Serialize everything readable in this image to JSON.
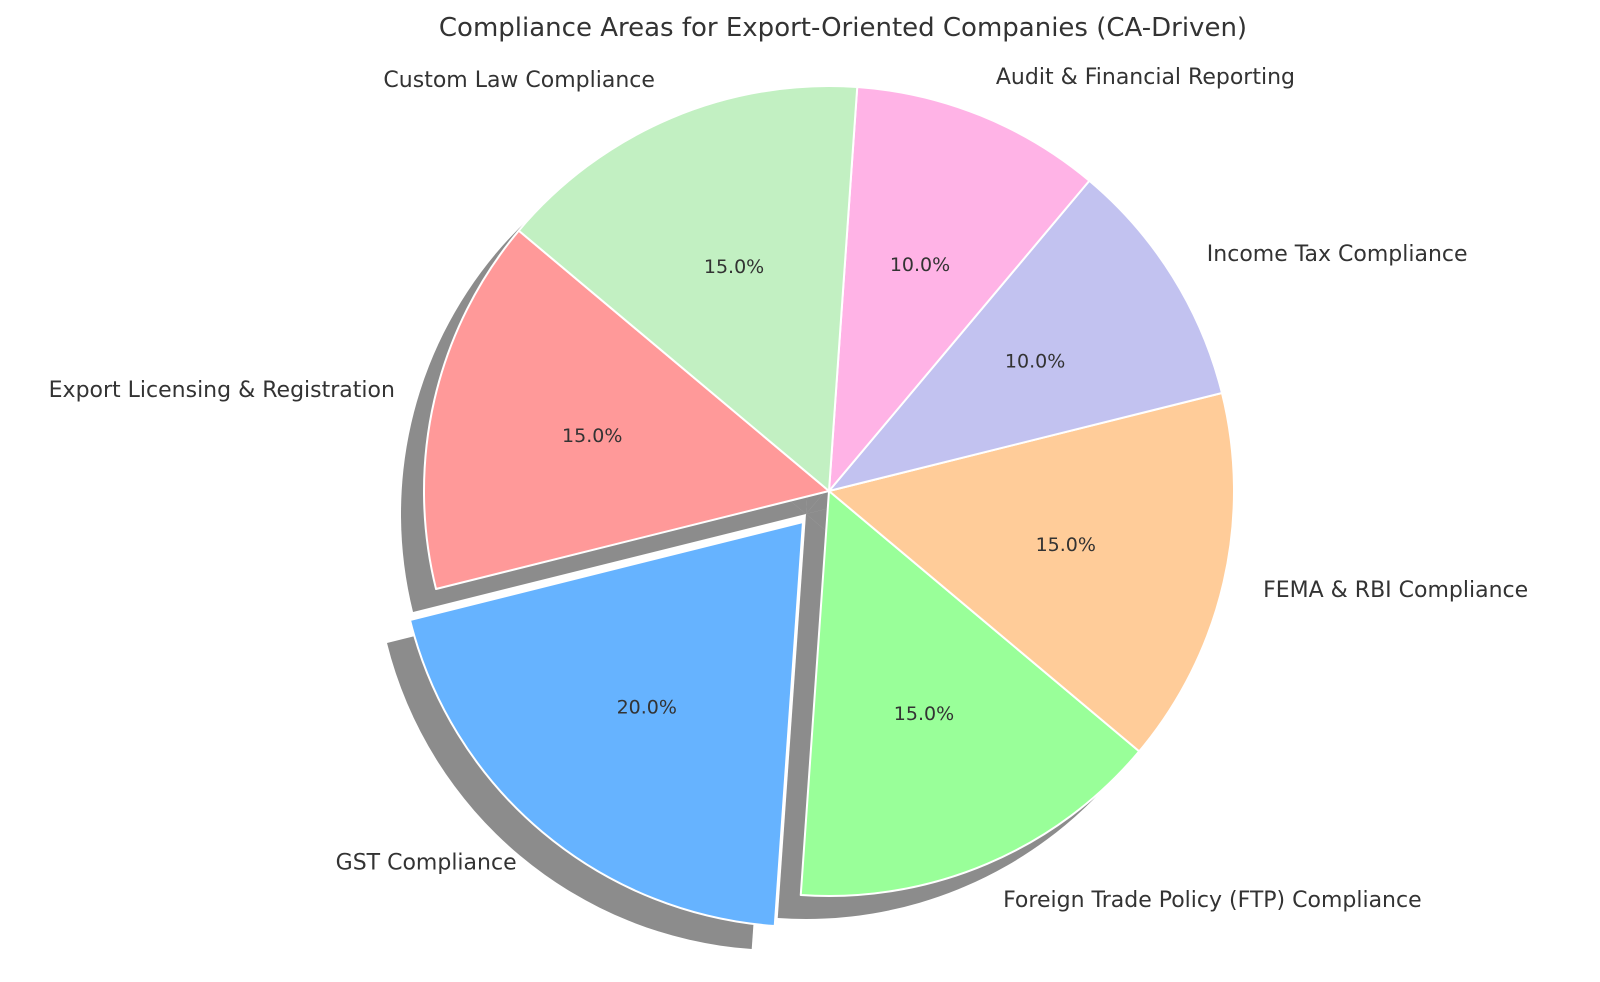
{
  "chart_data": {
    "type": "pie",
    "title": "Compliance Areas for Export-Oriented Companies (CA-Driven)",
    "start_angle_deg": 140,
    "direction": "counterclockwise",
    "shadow": true,
    "slices": [
      {
        "label": "Export Licensing & Registration",
        "value": 15,
        "pct_label": "15.0%",
        "color": "#ff9999",
        "explode": 0
      },
      {
        "label": "GST Compliance",
        "value": 20,
        "pct_label": "20.0%",
        "color": "#66b3ff",
        "explode": 0.1
      },
      {
        "label": "Foreign Trade Policy (FTP) Compliance",
        "value": 15,
        "pct_label": "15.0%",
        "color": "#99ff99",
        "explode": 0
      },
      {
        "label": "FEMA & RBI Compliance",
        "value": 15,
        "pct_label": "15.0%",
        "color": "#ffcc99",
        "explode": 0
      },
      {
        "label": "Income Tax Compliance",
        "value": 10,
        "pct_label": "10.0%",
        "color": "#c2c2f0",
        "explode": 0
      },
      {
        "label": "Audit & Financial Reporting",
        "value": 10,
        "pct_label": "10.0%",
        "color": "#ffb3e6",
        "explode": 0
      },
      {
        "label": "Custom Law Compliance",
        "value": 15,
        "pct_label": "15.0%",
        "color": "#c2f0c2",
        "explode": 0
      }
    ]
  }
}
